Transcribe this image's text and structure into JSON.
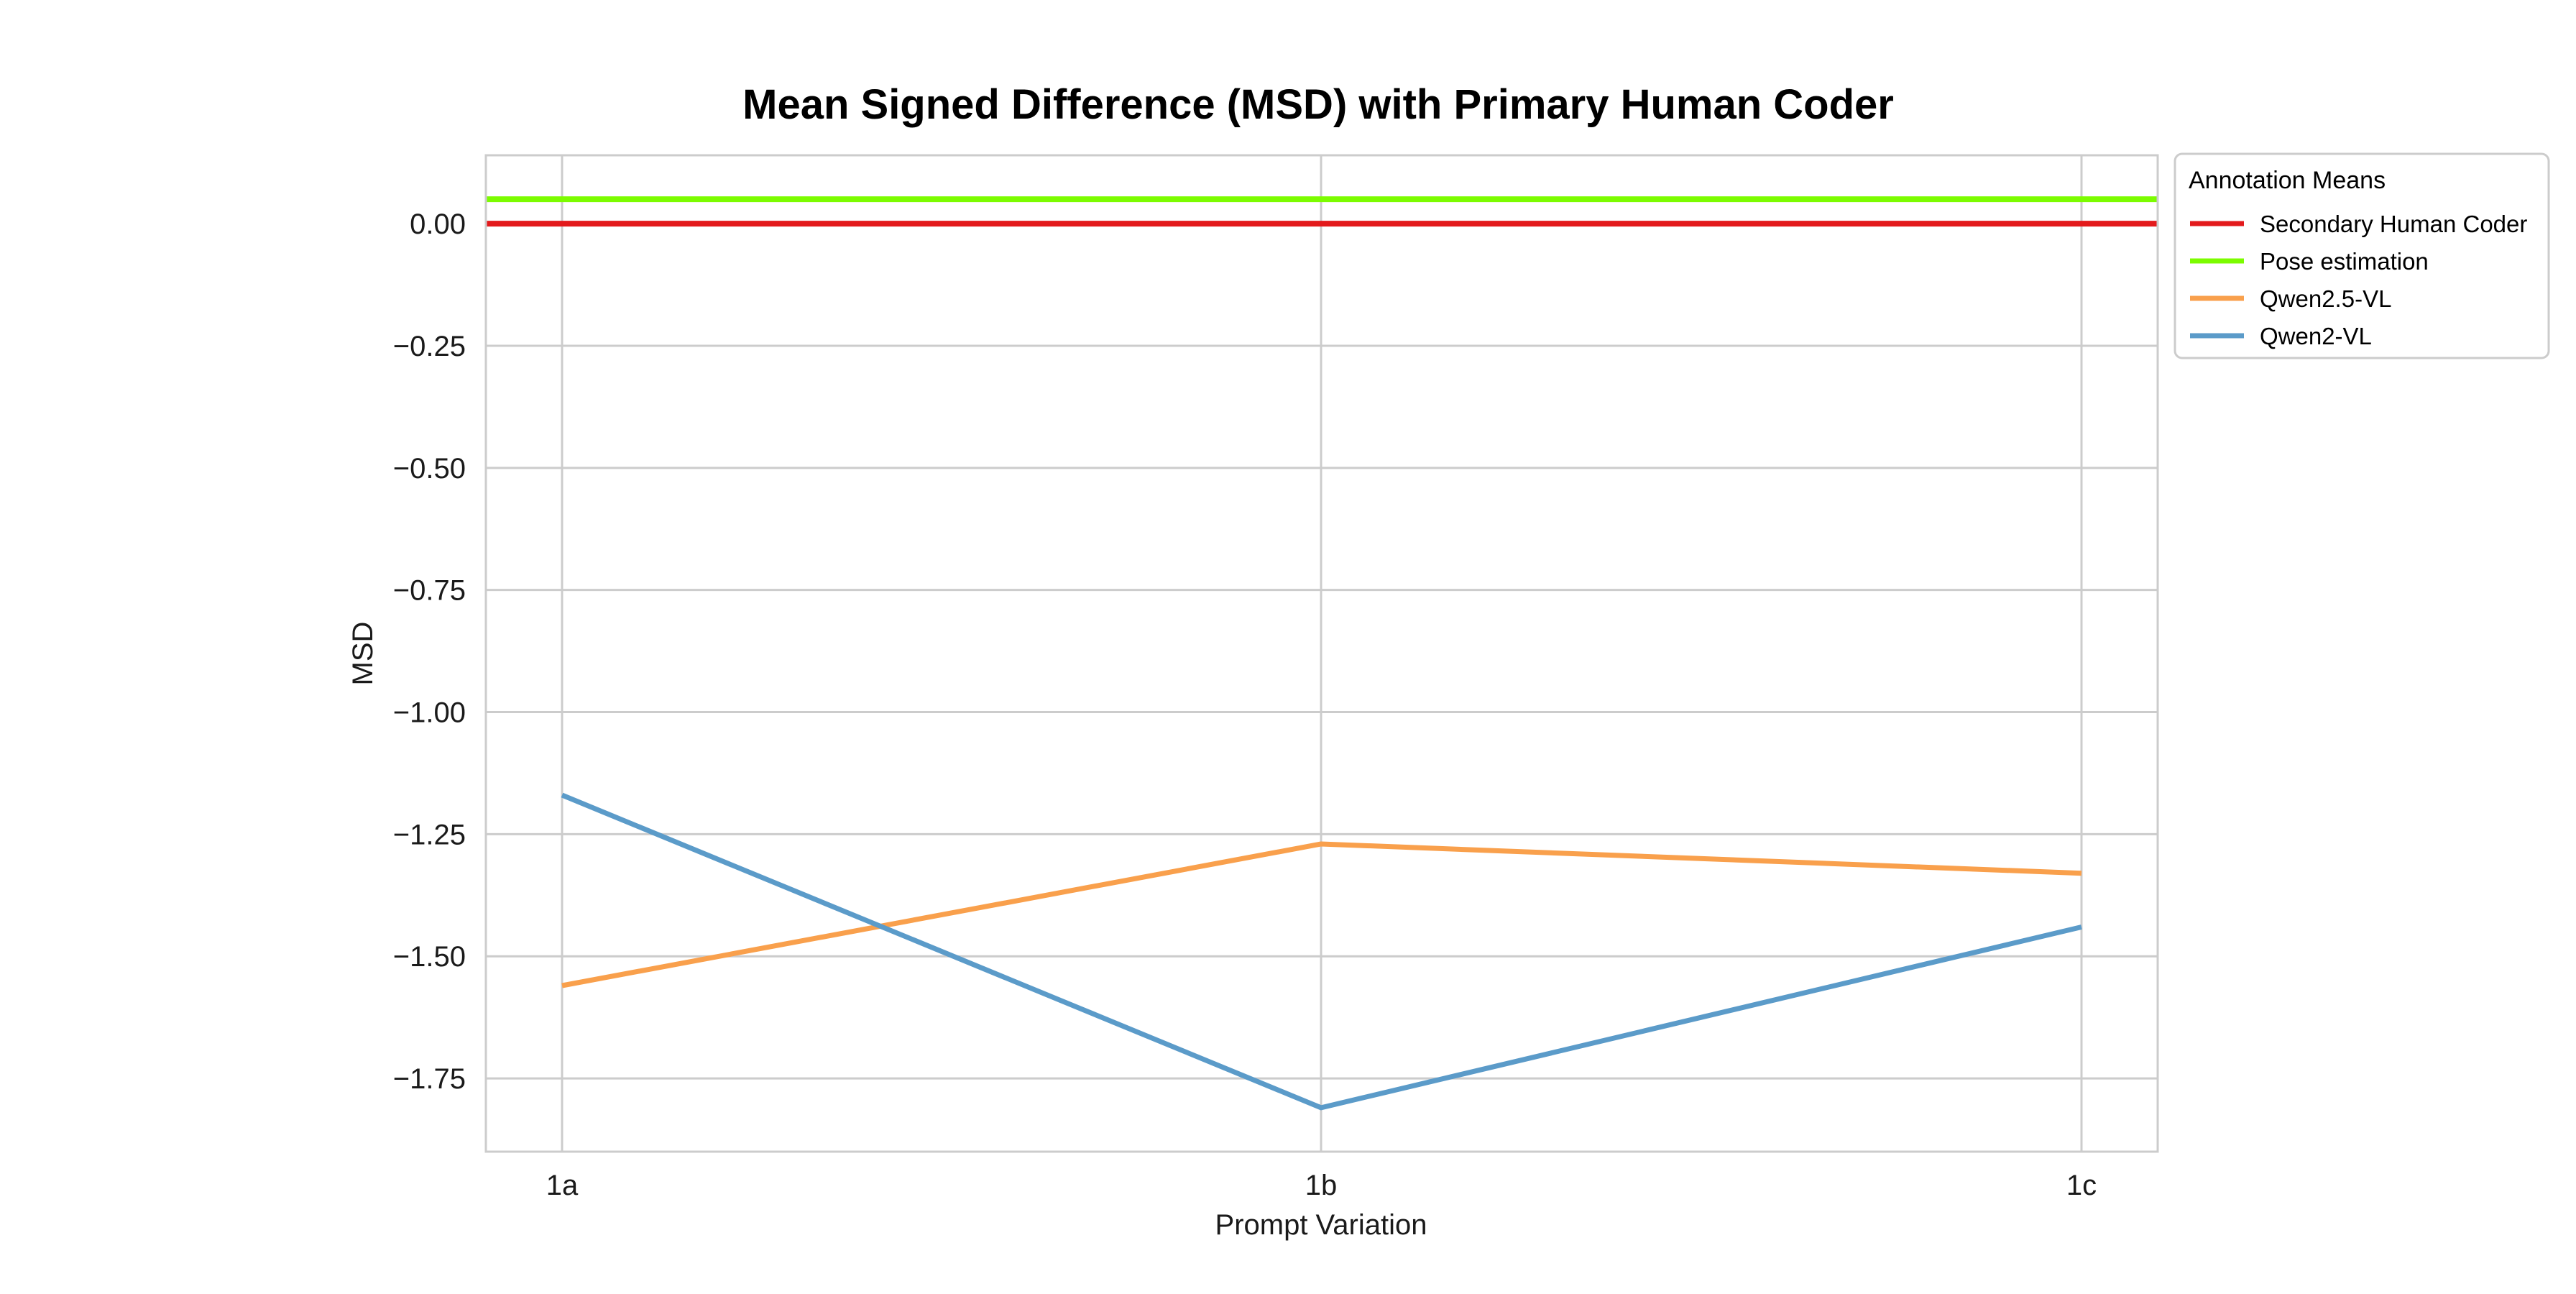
{
  "chart_data": {
    "type": "line",
    "title": "Mean Signed Difference (MSD) with Primary Human Coder",
    "xlabel": "Prompt Variation",
    "ylabel": "MSD",
    "categories": [
      "1a",
      "1b",
      "1c"
    ],
    "ylim": [
      -1.9,
      0.14
    ],
    "yticks": [
      0.0,
      -0.25,
      -0.5,
      -0.75,
      -1.0,
      -1.25,
      -1.5,
      -1.75
    ],
    "ytick_labels": [
      "0.00",
      "−0.25",
      "−0.50",
      "−0.75",
      "−1.00",
      "−1.25",
      "−1.50",
      "−1.75"
    ],
    "grid": true,
    "legend": {
      "title": "Annotation Means",
      "placement": "outside-top-right"
    },
    "series": [
      {
        "name": "Secondary Human Coder",
        "values": [
          0.0,
          0.0,
          0.0
        ],
        "color": "#e31a1c",
        "full_width": true
      },
      {
        "name": "Pose estimation",
        "values": [
          0.05,
          0.05,
          0.05
        ],
        "color": "#7cfc00",
        "full_width": true
      },
      {
        "name": "Qwen2.5-VL",
        "values": [
          -1.56,
          -1.27,
          -1.33
        ],
        "color": "#f9a04c",
        "full_width": false
      },
      {
        "name": "Qwen2-VL",
        "values": [
          -1.17,
          -1.81,
          -1.44
        ],
        "color": "#5b9bc9",
        "full_width": false
      }
    ]
  }
}
